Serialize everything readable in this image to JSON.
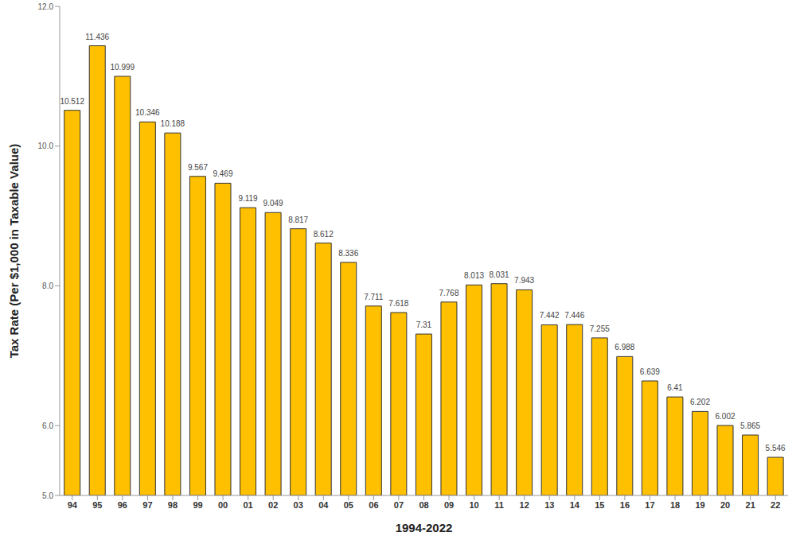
{
  "chart_data": {
    "type": "bar",
    "x_label": "1994-2022",
    "y_label": "Tax Rate (Per $1,000 in Taxable Value)",
    "categories": [
      "94",
      "95",
      "96",
      "97",
      "98",
      "99",
      "00",
      "01",
      "02",
      "03",
      "04",
      "05",
      "06",
      "07",
      "08",
      "09",
      "10",
      "11",
      "12",
      "13",
      "14",
      "15",
      "16",
      "17",
      "18",
      "19",
      "20",
      "21",
      "22"
    ],
    "values": [
      10.512,
      11.436,
      10.999,
      10.346,
      10.188,
      9.567,
      9.469,
      9.119,
      9.049,
      8.817,
      8.612,
      8.336,
      7.711,
      7.618,
      7.31,
      7.768,
      8.013,
      8.031,
      7.943,
      7.442,
      7.446,
      7.255,
      6.988,
      6.639,
      6.41,
      6.202,
      6.002,
      5.865,
      5.546
    ],
    "color": "#ffc000",
    "ylim": [
      5,
      12
    ],
    "yticks": [
      {
        "value": 5,
        "label": "5.0"
      },
      {
        "value": 6,
        "label": "6.0"
      },
      {
        "value": 8,
        "label": "8.0"
      },
      {
        "value": 10,
        "label": "10.0"
      },
      {
        "value": 12,
        "label": "12.0"
      }
    ],
    "grid": false,
    "data_labels": true
  }
}
